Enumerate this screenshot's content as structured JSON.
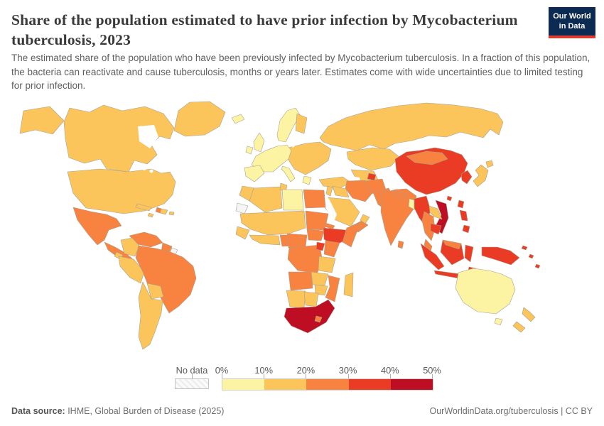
{
  "header": {
    "title": "Share of the population estimated to have prior infection by Mycobacterium tuberculosis, 2023",
    "subtitle": "The estimated share of the population who have been previously infected by Mycobacterium tuberculosis. In a fraction of this population, the bacteria can reactivate and cause tuberculosis, months or years later. Estimates come with wide uncertainties due to limited testing for prior infection.",
    "logo": {
      "line1": "Our World",
      "line2": "in Data",
      "bg": "#0c2a52",
      "accent": "#d93d32"
    }
  },
  "legend": {
    "no_data_label": "No data",
    "ticks": [
      "0%",
      "10%",
      "20%",
      "30%",
      "40%",
      "50%"
    ],
    "bands": [
      {
        "range": "0-10%",
        "color": "#fcf4a3"
      },
      {
        "range": "10-20%",
        "color": "#fbc55c"
      },
      {
        "range": "20-30%",
        "color": "#f8823f"
      },
      {
        "range": "30-40%",
        "color": "#ea3c24"
      },
      {
        "range": "40-50%",
        "color": "#bd0e24"
      }
    ]
  },
  "footer": {
    "source_label": "Data source:",
    "source_text": " IHME, Global Burden of Disease (2025)",
    "link": "OurWorldinData.org/tuberculosis",
    "separator": " | ",
    "license": "CC BY"
  },
  "map": {
    "ocean": "#ffffff",
    "no_data_color": "#f5f5f5",
    "border": "#a9a091"
  },
  "chart_data": {
    "type": "choropleth-map",
    "title": "Share of the population estimated to have prior infection by Mycobacterium tuberculosis",
    "year": 2023,
    "unit": "% of population",
    "legend_bins": [
      "0-10%",
      "10-20%",
      "20-30%",
      "30-40%",
      "40-50%",
      "No data"
    ],
    "legend_position": "bottom",
    "regions": {
      "greenland": {
        "label": "Greenland",
        "range": "10-20%",
        "band": 1
      },
      "alaska": {
        "label": "United States (Alaska)",
        "range": "10-20%",
        "band": 1
      },
      "canada": {
        "label": "Canada",
        "range": "10-20%",
        "band": 1
      },
      "usa": {
        "label": "United States",
        "range": "10-20%",
        "band": 1
      },
      "mexico": {
        "label": "Mexico",
        "range": "20-30%",
        "band": 2
      },
      "central-america": {
        "label": "Central America",
        "range": "20-30%",
        "band": 2
      },
      "nicaragua": {
        "label": "Nicaragua",
        "range": "10-20%",
        "band": 1
      },
      "cuba": {
        "label": "Cuba",
        "range": "10-20%",
        "band": 1
      },
      "jamaica": {
        "label": "Jamaica",
        "range": "10-20%",
        "band": 1
      },
      "haiti": {
        "label": "Haiti",
        "range": "20-30%",
        "band": 2
      },
      "dominican-republic": {
        "label": "Dominican Republic",
        "range": "10-20%",
        "band": 1
      },
      "puerto-rico": {
        "label": "Puerto Rico",
        "range": "10-20%",
        "band": 1
      },
      "venezuela": {
        "label": "Venezuela",
        "range": "20-30%",
        "band": 2
      },
      "guyanas": {
        "label": "Guyana & Suriname",
        "range": "20-30%",
        "band": 2
      },
      "french-guiana": {
        "label": "French Guiana",
        "range": "No data",
        "band": "no_data"
      },
      "colombia": {
        "label": "Colombia",
        "range": "10-20%",
        "band": 1
      },
      "peru": {
        "label": "Peru & Ecuador",
        "range": "10-20%",
        "band": 1
      },
      "brazil": {
        "label": "Brazil",
        "range": "20-30%",
        "band": 2
      },
      "bolivia": {
        "label": "Bolivia",
        "range": "10-20%",
        "band": 1
      },
      "southern-cone": {
        "label": "Argentina, Chile, Paraguay, Uruguay",
        "range": "10-20%",
        "band": 1
      },
      "iceland": {
        "label": "Iceland",
        "range": "0-10%",
        "band": 0
      },
      "uk": {
        "label": "United Kingdom",
        "range": "0-10%",
        "band": 0
      },
      "ireland": {
        "label": "Ireland",
        "range": "0-10%",
        "band": 0
      },
      "scandinavia": {
        "label": "Norway & Sweden",
        "range": "0-10%",
        "band": 0
      },
      "finland": {
        "label": "Finland",
        "range": "10-20%",
        "band": 1
      },
      "western-europe": {
        "label": "Western Europe",
        "range": "0-10%",
        "band": 0
      },
      "iberia": {
        "label": "Spain & Portugal",
        "range": "0-10%",
        "band": 0
      },
      "italy": {
        "label": "Italy",
        "range": "0-10%",
        "band": 0
      },
      "greece": {
        "label": "Greece",
        "range": "0-10%",
        "band": 0
      },
      "eastern-europe": {
        "label": "Eastern Europe",
        "range": "10-20%",
        "band": 1
      },
      "turkey": {
        "label": "Turkey",
        "range": "10-20%",
        "band": 1
      },
      "russia": {
        "label": "Russia",
        "range": "10-20%",
        "band": 1
      },
      "kazakhstan": {
        "label": "Kazakhstan",
        "range": "10-20%",
        "band": 1
      },
      "uzbek-turkmen": {
        "label": "Uzbekistan & Turkmenistan",
        "range": "10-20%",
        "band": 1
      },
      "tajikistan": {
        "label": "Tajikistan",
        "range": "30-40%",
        "band": 3
      },
      "afghanistan": {
        "label": "Afghanistan",
        "range": "20-30%",
        "band": 2
      },
      "iran": {
        "label": "Iran",
        "range": "20-30%",
        "band": 2
      },
      "iraq": {
        "label": "Iraq",
        "range": "10-20%",
        "band": 1
      },
      "levant": {
        "label": "Levant",
        "range": "10-20%",
        "band": 1
      },
      "saudi-arabia": {
        "label": "Saudi Arabia",
        "range": "10-20%",
        "band": 1
      },
      "yemen": {
        "label": "Yemen",
        "range": "20-30%",
        "band": 2
      },
      "oman": {
        "label": "Oman",
        "range": "10-20%",
        "band": 1
      },
      "morocco": {
        "label": "Morocco",
        "range": "10-20%",
        "band": 1
      },
      "algeria": {
        "label": "Algeria",
        "range": "10-20%",
        "band": 1
      },
      "tunisia": {
        "label": "Tunisia",
        "range": "10-20%",
        "band": 1
      },
      "libya": {
        "label": "Libya",
        "range": "0-10%",
        "band": 0
      },
      "egypt": {
        "label": "Egypt",
        "range": "20-30%",
        "band": 2
      },
      "western-sahara": {
        "label": "Western Sahara",
        "range": "No data",
        "band": "no_data"
      },
      "sahel": {
        "label": "Mauritania, Mali, Niger, Chad",
        "range": "10-20%",
        "band": 1
      },
      "senegal": {
        "label": "Senegal & Guinea",
        "range": "10-20%",
        "band": 1
      },
      "west-african-coast": {
        "label": "West African coast",
        "range": "10-20%",
        "band": 1
      },
      "nigeria": {
        "label": "Nigeria",
        "range": "20-30%",
        "band": 2
      },
      "sudan": {
        "label": "Sudan",
        "range": "20-30%",
        "band": 2
      },
      "eritrea": {
        "label": "Eritrea",
        "range": "20-30%",
        "band": 2
      },
      "ethiopia": {
        "label": "Ethiopia",
        "range": "30-40%",
        "band": 3
      },
      "somalia": {
        "label": "Somalia",
        "range": "20-30%",
        "band": 2
      },
      "south-sudan": {
        "label": "South Sudan",
        "range": "20-30%",
        "band": 2
      },
      "cameroon-car": {
        "label": "Cameroon & Central African Republic",
        "range": "20-30%",
        "band": 2
      },
      "drc": {
        "label": "Democratic Republic of Congo",
        "range": "20-30%",
        "band": 2
      },
      "uganda": {
        "label": "Uganda",
        "range": "30-40%",
        "band": 3
      },
      "kenya": {
        "label": "Kenya",
        "range": "20-30%",
        "band": 2
      },
      "tanzania": {
        "label": "Tanzania",
        "range": "10-20%",
        "band": 1
      },
      "angola": {
        "label": "Angola",
        "range": "20-30%",
        "band": 2
      },
      "zambia": {
        "label": "Zambia",
        "range": "10-20%",
        "band": 1
      },
      "mozambique": {
        "label": "Mozambique & Malawi",
        "range": "20-30%",
        "band": 2
      },
      "zimbabwe": {
        "label": "Zimbabwe",
        "range": "10-20%",
        "band": 1
      },
      "namibia": {
        "label": "Namibia",
        "range": "10-20%",
        "band": 1
      },
      "botswana": {
        "label": "Botswana",
        "range": "10-20%",
        "band": 1
      },
      "south-africa": {
        "label": "South Africa",
        "range": "40-50%",
        "band": 4
      },
      "lesotho": {
        "label": "Lesotho",
        "range": "20-30%",
        "band": 2
      },
      "madagascar": {
        "label": "Madagascar",
        "range": "10-20%",
        "band": 1
      },
      "pakistan": {
        "label": "Pakistan",
        "range": "20-30%",
        "band": 2
      },
      "india": {
        "label": "India",
        "range": "20-30%",
        "band": 2
      },
      "nepal": {
        "label": "Nepal",
        "range": "20-30%",
        "band": 2
      },
      "bangladesh": {
        "label": "Bangladesh",
        "range": "0-10%",
        "band": 0
      },
      "sri-lanka": {
        "label": "Sri Lanka",
        "range": "20-30%",
        "band": 2
      },
      "china": {
        "label": "China",
        "range": "30-40%",
        "band": 3
      },
      "hainan": {
        "label": "China (Hainan)",
        "range": "30-40%",
        "band": 3
      },
      "mongolia": {
        "label": "Mongolia",
        "range": "20-30%",
        "band": 2
      },
      "korea": {
        "label": "Korea",
        "range": "30-40%",
        "band": 3
      },
      "japan": {
        "label": "Japan",
        "range": "10-20%",
        "band": 1
      },
      "hokkaido": {
        "label": "Japan (Hokkaido)",
        "range": "10-20%",
        "band": 1
      },
      "taiwan": {
        "label": "Taiwan",
        "range": "30-40%",
        "band": 3
      },
      "myanmar": {
        "label": "Myanmar",
        "range": "30-40%",
        "band": 3
      },
      "laos": {
        "label": "Laos",
        "range": "10-20%",
        "band": 1
      },
      "thailand": {
        "label": "Thailand",
        "range": "20-30%",
        "band": 2
      },
      "vietnam": {
        "label": "Vietnam",
        "range": "40-50%",
        "band": 4
      },
      "cambodia": {
        "label": "Cambodia",
        "range": "30-40%",
        "band": 3
      },
      "malaysia-peninsula": {
        "label": "Malaysia (peninsula)",
        "range": "20-30%",
        "band": 2
      },
      "malaysia-borneo": {
        "label": "Malaysia (Borneo)",
        "range": "20-30%",
        "band": 2
      },
      "sumatra": {
        "label": "Indonesia (Sumatra)",
        "range": "30-40%",
        "band": 3
      },
      "borneo-indonesia": {
        "label": "Indonesia (Kalimantan)",
        "range": "30-40%",
        "band": 3
      },
      "java": {
        "label": "Indonesia (Java)",
        "range": "30-40%",
        "band": 3
      },
      "sulawesi": {
        "label": "Indonesia (Sulawesi)",
        "range": "30-40%",
        "band": 3
      },
      "lesser-sunda-1": {
        "label": "Indonesia (Lesser Sunda)",
        "range": "30-40%",
        "band": 3
      },
      "lesser-sunda-2": {
        "label": "Indonesia (Moluccas)",
        "range": "30-40%",
        "band": 3
      },
      "philippines-luzon": {
        "label": "Philippines (Luzon)",
        "range": "30-40%",
        "band": 3
      },
      "philippines-mindanao": {
        "label": "Philippines (Mindanao)",
        "range": "30-40%",
        "band": 3
      },
      "new-guinea": {
        "label": "Papua New Guinea & Papua",
        "range": "30-40%",
        "band": 3
      },
      "solomon": {
        "label": "Solomon Islands",
        "range": "30-40%",
        "band": 3
      },
      "vanuatu": {
        "label": "Vanuatu",
        "range": "30-40%",
        "band": 3
      },
      "fiji": {
        "label": "Fiji",
        "range": "30-40%",
        "band": 3
      },
      "australia": {
        "label": "Australia",
        "range": "0-10%",
        "band": 0
      },
      "tasmania": {
        "label": "Australia (Tasmania)",
        "range": "0-10%",
        "band": 0
      },
      "nz-north": {
        "label": "New Zealand (North Island)",
        "range": "10-20%",
        "band": 1
      },
      "nz-south": {
        "label": "New Zealand (South Island)",
        "range": "10-20%",
        "band": 1
      }
    }
  }
}
